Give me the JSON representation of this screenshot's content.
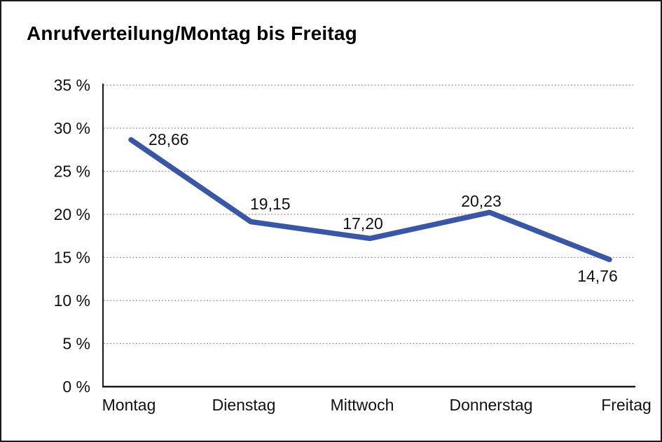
{
  "page": {
    "background_color": "#ffffff",
    "border_color": "#1a1a1a"
  },
  "chart_data": {
    "type": "line",
    "title": "Anrufverteilung/Montag bis Freitag",
    "categories": [
      "Montag",
      "Dienstag",
      "Mittwoch",
      "Donnerstag",
      "Freitag"
    ],
    "values": [
      28.66,
      19.15,
      17.2,
      20.23,
      14.76
    ],
    "point_labels": [
      "28,66",
      "19,15",
      "17,20",
      "20,23",
      "14,76"
    ],
    "xlabel": "",
    "ylabel": "",
    "y_axis": {
      "min": 0,
      "max": 35,
      "step": 5,
      "tick_labels": [
        "0 %",
        "5 %",
        "10 %",
        "15 %",
        "20 %",
        "25 %",
        "30 %",
        "35 %"
      ]
    },
    "grid": "horizontal-dotted",
    "legend": "none",
    "line_color": "#3A57A5",
    "gridline_color": "#8c8c8c",
    "axis_color": "#1a1a1a",
    "text_color": "#111111"
  }
}
